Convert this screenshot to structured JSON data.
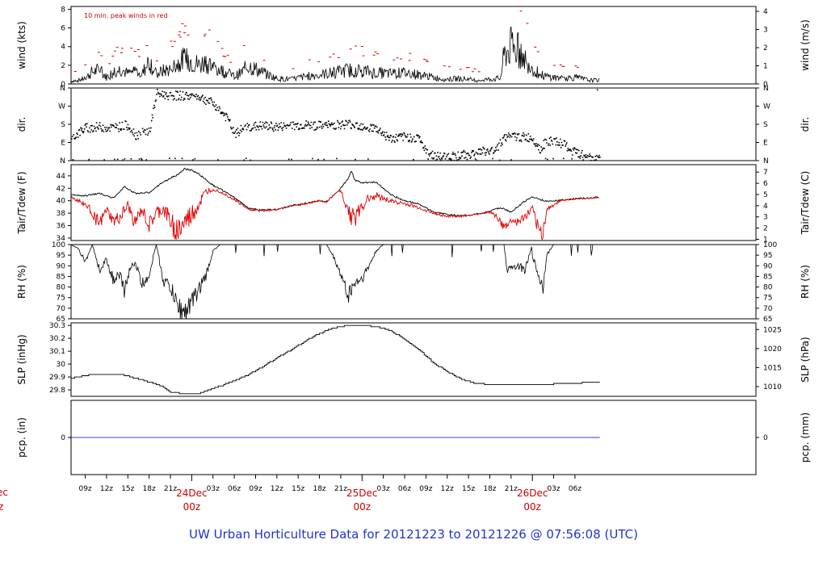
{
  "colors": {
    "peak": "#cc0000",
    "tdew": "#dd0000",
    "pcp": "#3a3ad0",
    "date": "#cc0000",
    "footer": "#2233cc",
    "ink": "#000000"
  },
  "footer": "UW Urban Horticulture Data for 20121223  to  20121226 @ 07:56:08  (UTC)",
  "left_cut": {
    "top": "ec",
    "bottom": "z"
  },
  "x_axis": {
    "range_hours": [
      -17,
      79.5
    ],
    "ticks": [
      {
        "h": -15,
        "label": "09z"
      },
      {
        "h": -12,
        "label": "12z"
      },
      {
        "h": -9,
        "label": "15z"
      },
      {
        "h": -6,
        "label": "18z"
      },
      {
        "h": -3,
        "label": "21z"
      },
      {
        "h": 3,
        "label": "03z"
      },
      {
        "h": 6,
        "label": "06z"
      },
      {
        "h": 9,
        "label": "09z"
      },
      {
        "h": 12,
        "label": "12z"
      },
      {
        "h": 15,
        "label": "15z"
      },
      {
        "h": 18,
        "label": "18z"
      },
      {
        "h": 21,
        "label": "21z"
      },
      {
        "h": 27,
        "label": "03z"
      },
      {
        "h": 30,
        "label": "06z"
      },
      {
        "h": 33,
        "label": "09z"
      },
      {
        "h": 36,
        "label": "12z"
      },
      {
        "h": 39,
        "label": "15z"
      },
      {
        "h": 42,
        "label": "18z"
      },
      {
        "h": 45,
        "label": "21z"
      },
      {
        "h": 51,
        "label": "03z"
      },
      {
        "h": 54,
        "label": "06z"
      }
    ],
    "days": [
      {
        "h": 0,
        "date": "24Dec",
        "time": "00z"
      },
      {
        "h": 24,
        "date": "25Dec",
        "time": "00z"
      },
      {
        "h": 48,
        "date": "26Dec",
        "time": "00z"
      }
    ]
  },
  "panels": [
    {
      "id": "wind",
      "left_label": "wind (kts)",
      "right_label": "wind (m/s)",
      "ylim": [
        0,
        8.3
      ],
      "left_ticks": [
        0,
        2,
        4,
        6,
        8
      ],
      "right_ticks": [
        0,
        1,
        2,
        3,
        4
      ],
      "right_factor": 1.9438,
      "note": "10 min. peak winds in red",
      "mean_anchors": [
        [
          -17,
          0.3
        ],
        [
          -16,
          0.4
        ],
        [
          -15,
          0.6
        ],
        [
          -14,
          1.3
        ],
        [
          -13,
          1.5
        ],
        [
          -12,
          0.7
        ],
        [
          -11,
          1.3
        ],
        [
          -10,
          1.6
        ],
        [
          -9,
          1.1
        ],
        [
          -8,
          1.5
        ],
        [
          -7,
          1.0
        ],
        [
          -6,
          2.6
        ],
        [
          -5,
          1.0
        ],
        [
          -4,
          1.4
        ],
        [
          -3,
          1.6
        ],
        [
          -2,
          2.2
        ],
        [
          -1,
          2.6
        ],
        [
          0,
          2.5
        ],
        [
          1,
          2.0
        ],
        [
          2,
          2.4
        ],
        [
          3,
          1.8
        ],
        [
          4,
          1.5
        ],
        [
          5,
          1.2
        ],
        [
          6,
          0.8
        ],
        [
          7,
          1.2
        ],
        [
          8,
          2.0
        ],
        [
          9,
          1.6
        ],
        [
          10,
          1.2
        ],
        [
          11,
          0.9
        ],
        [
          12,
          0.6
        ],
        [
          14,
          0.5
        ],
        [
          16,
          0.8
        ],
        [
          18,
          1.0
        ],
        [
          20,
          1.2
        ],
        [
          22,
          1.5
        ],
        [
          24,
          1.4
        ],
        [
          26,
          1.2
        ],
        [
          28,
          1.1
        ],
        [
          30,
          1.2
        ],
        [
          32,
          1.0
        ],
        [
          34,
          0.7
        ],
        [
          36,
          0.5
        ],
        [
          38,
          0.6
        ],
        [
          40,
          0.4
        ],
        [
          42,
          0.5
        ],
        [
          43.5,
          0.6
        ],
        [
          44,
          3.0
        ],
        [
          45,
          4.0
        ],
        [
          46,
          3.6
        ],
        [
          47,
          2.6
        ],
        [
          48,
          1.8
        ],
        [
          49,
          1.0
        ],
        [
          50,
          0.8
        ],
        [
          52,
          0.6
        ],
        [
          54,
          0.7
        ],
        [
          56,
          0.4
        ],
        [
          57.5,
          0.4
        ]
      ]
    },
    {
      "id": "dir",
      "left_label": "dir.",
      "right_label": "dir.",
      "ylim": [
        0,
        360
      ],
      "left_ticks": [
        {
          "v": 0,
          "label": "N"
        },
        {
          "v": 90,
          "label": "E"
        },
        {
          "v": 180,
          "label": "S"
        },
        {
          "v": 270,
          "label": "W"
        },
        {
          "v": 360,
          "label": "N"
        }
      ],
      "right_ticks": [
        {
          "v": 0,
          "label": "N"
        },
        {
          "v": 90,
          "label": "E"
        },
        {
          "v": 180,
          "label": "S"
        },
        {
          "v": 270,
          "label": "W"
        },
        {
          "v": 360,
          "label": "N"
        }
      ],
      "anchors": [
        [
          -17,
          115
        ],
        [
          -15,
          165
        ],
        [
          -13,
          170
        ],
        [
          -11,
          165
        ],
        [
          -9,
          180
        ],
        [
          -8,
          130
        ],
        [
          -6,
          150
        ],
        [
          -5,
          335
        ],
        [
          -3,
          325
        ],
        [
          -1,
          325
        ],
        [
          1,
          320
        ],
        [
          3,
          285
        ],
        [
          5,
          210
        ],
        [
          6,
          130
        ],
        [
          7,
          160
        ],
        [
          8,
          170
        ],
        [
          10,
          175
        ],
        [
          12,
          170
        ],
        [
          14,
          175
        ],
        [
          16,
          180
        ],
        [
          18,
          175
        ],
        [
          20,
          180
        ],
        [
          22,
          185
        ],
        [
          24,
          175
        ],
        [
          26,
          160
        ],
        [
          28,
          110
        ],
        [
          30,
          120
        ],
        [
          32,
          115
        ],
        [
          33,
          40
        ],
        [
          35,
          20
        ],
        [
          37,
          25
        ],
        [
          39,
          35
        ],
        [
          41,
          50
        ],
        [
          42,
          45
        ],
        [
          43,
          70
        ],
        [
          44,
          120
        ],
        [
          46,
          120
        ],
        [
          48,
          115
        ],
        [
          49,
          60
        ],
        [
          50,
          100
        ],
        [
          52,
          90
        ],
        [
          54,
          40
        ],
        [
          56,
          20
        ],
        [
          57.5,
          10
        ]
      ]
    },
    {
      "id": "temp",
      "left_label": "Tair/Tdew (F)",
      "right_label": "Tair/Tdew (C)",
      "ylim": [
        33.6,
        45.8
      ],
      "left_ticks": [
        34,
        36,
        38,
        40,
        42,
        44
      ],
      "right_ticks": [
        1,
        2,
        3,
        4,
        5,
        6,
        7
      ],
      "tair_anchors": [
        [
          -17,
          41.0
        ],
        [
          -15,
          40.8
        ],
        [
          -13,
          41.2
        ],
        [
          -11,
          40.4
        ],
        [
          -9.5,
          42.3
        ],
        [
          -8,
          41.2
        ],
        [
          -6,
          41.3
        ],
        [
          -4,
          43.0
        ],
        [
          -2,
          44.2
        ],
        [
          -1,
          45.1
        ],
        [
          0,
          44.9
        ],
        [
          1,
          44.3
        ],
        [
          3,
          42.5
        ],
        [
          4,
          41.9
        ],
        [
          6,
          40.5
        ],
        [
          8,
          38.8
        ],
        [
          10,
          38.5
        ],
        [
          12,
          38.6
        ],
        [
          14,
          39.2
        ],
        [
          16,
          39.6
        ],
        [
          18,
          40.0
        ],
        [
          19,
          39.8
        ],
        [
          21,
          42.0
        ],
        [
          22,
          43.5
        ],
        [
          22.5,
          44.8
        ],
        [
          23,
          43.3
        ],
        [
          24,
          42.9
        ],
        [
          26,
          43.0
        ],
        [
          28,
          41.0
        ],
        [
          30,
          40.0
        ],
        [
          32,
          39.5
        ],
        [
          34,
          38.2
        ],
        [
          36,
          37.8
        ],
        [
          38,
          37.6
        ],
        [
          40,
          37.8
        ],
        [
          42,
          38.3
        ],
        [
          43.5,
          38.9
        ],
        [
          45,
          38.2
        ],
        [
          47,
          40.0
        ],
        [
          48,
          40.6
        ],
        [
          50,
          39.9
        ],
        [
          52,
          40.1
        ],
        [
          54,
          40.3
        ],
        [
          57.5,
          40.6
        ]
      ],
      "tdew_anchors": [
        [
          -17,
          40.6
        ],
        [
          -15,
          39.4
        ],
        [
          -14,
          38.2
        ],
        [
          -13,
          36.0
        ],
        [
          -12,
          38.6
        ],
        [
          -11,
          36.6
        ],
        [
          -10,
          37.4
        ],
        [
          -9,
          39.2
        ],
        [
          -8,
          36.4
        ],
        [
          -7,
          38.6
        ],
        [
          -6,
          35.9
        ],
        [
          -5,
          38.0
        ],
        [
          -4,
          38.6
        ],
        [
          -3,
          36.7
        ],
        [
          -2,
          35.1
        ],
        [
          -1,
          36.4
        ],
        [
          0,
          37.7
        ],
        [
          1,
          39.4
        ],
        [
          2,
          41.4
        ],
        [
          3,
          41.9
        ],
        [
          4,
          41.5
        ],
        [
          6,
          40.2
        ],
        [
          8,
          38.6
        ],
        [
          10,
          38.4
        ],
        [
          12,
          38.6
        ],
        [
          14,
          39.2
        ],
        [
          16,
          39.5
        ],
        [
          18,
          40.0
        ],
        [
          19,
          39.8
        ],
        [
          20,
          41.4
        ],
        [
          21,
          41.6
        ],
        [
          22,
          38.6
        ],
        [
          23,
          37.0
        ],
        [
          24,
          39.1
        ],
        [
          25,
          40.6
        ],
        [
          26,
          40.8
        ],
        [
          28,
          40.0
        ],
        [
          30,
          39.5
        ],
        [
          32,
          38.9
        ],
        [
          34,
          38.0
        ],
        [
          36,
          37.5
        ],
        [
          38,
          37.5
        ],
        [
          40,
          37.8
        ],
        [
          42,
          38.2
        ],
        [
          43,
          37.5
        ],
        [
          44,
          35.5
        ],
        [
          45,
          36.8
        ],
        [
          46,
          36.5
        ],
        [
          47,
          37.4
        ],
        [
          48,
          38.6
        ],
        [
          49,
          35.0
        ],
        [
          49.5,
          34.8
        ],
        [
          50,
          38.5
        ],
        [
          52,
          40.1
        ],
        [
          54,
          40.3
        ],
        [
          57.5,
          40.6
        ]
      ]
    },
    {
      "id": "rh",
      "left_label": "RH (%)",
      "right_label": "RH (%)",
      "ylim": [
        65,
        100
      ],
      "left_ticks": [
        65,
        70,
        75,
        80,
        85,
        90,
        95,
        100
      ],
      "right_ticks": [
        65,
        70,
        75,
        80,
        85,
        90,
        95,
        100
      ],
      "anchors": [
        [
          -17,
          100
        ],
        [
          -16,
          98
        ],
        [
          -15,
          92
        ],
        [
          -14,
          100
        ],
        [
          -13,
          88
        ],
        [
          -12,
          93
        ],
        [
          -11,
          83
        ],
        [
          -10,
          85
        ],
        [
          -9.5,
          77
        ],
        [
          -9,
          86
        ],
        [
          -8,
          92
        ],
        [
          -7,
          81
        ],
        [
          -6,
          86
        ],
        [
          -5,
          100
        ],
        [
          -4,
          83
        ],
        [
          -3,
          80
        ],
        [
          -2,
          71
        ],
        [
          -1,
          68
        ],
        [
          0,
          73
        ],
        [
          1,
          79
        ],
        [
          2,
          85
        ],
        [
          3,
          97
        ],
        [
          4,
          100
        ],
        [
          19,
          100
        ],
        [
          20,
          94
        ],
        [
          21,
          86
        ],
        [
          22,
          76
        ],
        [
          23,
          82
        ],
        [
          24,
          84
        ],
        [
          25,
          90
        ],
        [
          26,
          97
        ],
        [
          27,
          100
        ],
        [
          48,
          100
        ],
        [
          44,
          100
        ],
        [
          44.5,
          86
        ],
        [
          45,
          90
        ],
        [
          46,
          90
        ],
        [
          47,
          88
        ],
        [
          48,
          95
        ],
        [
          49,
          84
        ],
        [
          49.5,
          80
        ],
        [
          50,
          95
        ],
        [
          51,
          100
        ],
        [
          57.5,
          100
        ]
      ]
    },
    {
      "id": "slp",
      "left_label": "SLP (inHg)",
      "right_label": "SLP (hPa)",
      "ylim": [
        29.75,
        30.32
      ],
      "left_ticks": [
        29.8,
        29.9,
        30.0,
        30.1,
        30.2,
        30.3
      ],
      "right_ticks": [
        1010,
        1015,
        1020,
        1025
      ],
      "right_factor": 33.8639,
      "anchors": [
        [
          -17,
          29.89
        ],
        [
          -14,
          29.92
        ],
        [
          -10,
          29.92
        ],
        [
          -8,
          29.89
        ],
        [
          -6,
          29.86
        ],
        [
          -4,
          29.82
        ],
        [
          -3,
          29.78
        ],
        [
          -1,
          29.77
        ],
        [
          1,
          29.77
        ],
        [
          2,
          29.79
        ],
        [
          4,
          29.83
        ],
        [
          6,
          29.87
        ],
        [
          8,
          29.92
        ],
        [
          10,
          29.98
        ],
        [
          12,
          30.05
        ],
        [
          14,
          30.11
        ],
        [
          16,
          30.18
        ],
        [
          18,
          30.24
        ],
        [
          20,
          30.28
        ],
        [
          22,
          30.3
        ],
        [
          24,
          30.3
        ],
        [
          26,
          30.29
        ],
        [
          28,
          30.26
        ],
        [
          30,
          30.19
        ],
        [
          32,
          30.11
        ],
        [
          34,
          30.01
        ],
        [
          36,
          29.94
        ],
        [
          38,
          29.88
        ],
        [
          40,
          29.85
        ],
        [
          42,
          29.84
        ],
        [
          44,
          29.84
        ],
        [
          46,
          29.84
        ],
        [
          48,
          29.84
        ],
        [
          50,
          29.84
        ],
        [
          52,
          29.85
        ],
        [
          54,
          29.85
        ],
        [
          56,
          29.86
        ],
        [
          57.5,
          29.86
        ]
      ]
    },
    {
      "id": "pcp",
      "left_label": "pcp. (in)",
      "right_label": "pcp. (mm)",
      "ylim": [
        -0.1,
        0.1
      ],
      "left_ticks": [
        0
      ],
      "right_ticks": [
        0
      ],
      "series": [
        [
          -17,
          0
        ],
        [
          57.5,
          0
        ]
      ]
    }
  ]
}
